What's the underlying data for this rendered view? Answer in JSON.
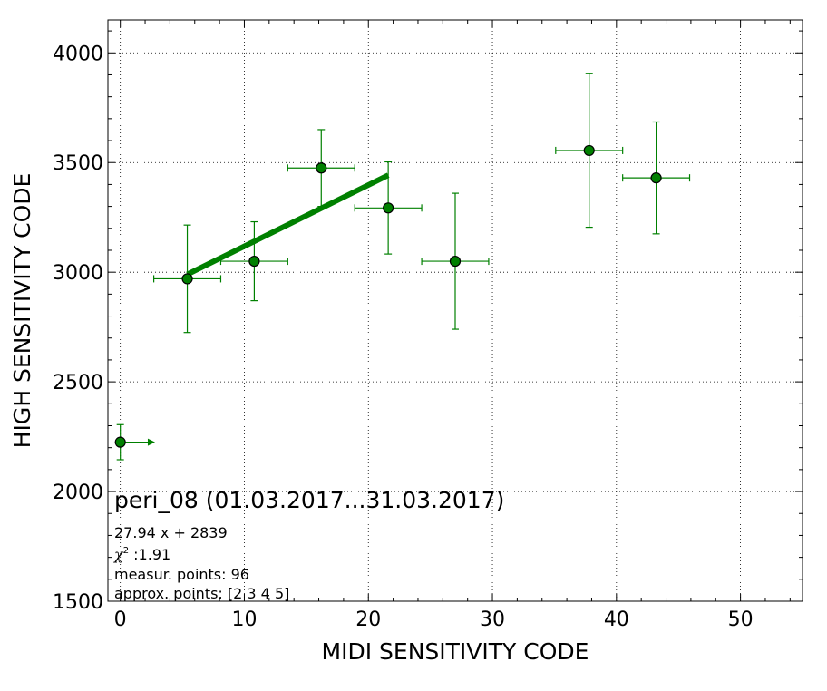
{
  "chart_data": {
    "type": "scatter",
    "title": "",
    "xlabel": "MIDI SENSITIVITY CODE",
    "ylabel": "HIGH SENSITIVITY CODE",
    "xlim": [
      -1,
      55
    ],
    "ylim": [
      1500,
      4150
    ],
    "x_ticks": [
      0,
      10,
      20,
      30,
      40,
      50
    ],
    "y_ticks": [
      1500,
      2000,
      2500,
      3000,
      3500,
      4000
    ],
    "x_tick_labels": [
      "0",
      "10",
      "20",
      "30",
      "40",
      "50"
    ],
    "y_tick_labels": [
      "1500",
      "2000",
      "2500",
      "3000",
      "3500",
      "4000"
    ],
    "grid": true,
    "colors": {
      "series": "#008000",
      "marker_edge": "#000000",
      "grid": "#000000"
    },
    "points": [
      {
        "x": 0,
        "y": 2225,
        "xerr": 0,
        "yerr_low": 80,
        "yerr_high": 80,
        "lower_limit_arrow": true
      },
      {
        "x": 5.4,
        "y": 2970,
        "xerr": 2.7,
        "yerr_low": 245,
        "yerr_high": 245
      },
      {
        "x": 10.8,
        "y": 3050,
        "xerr": 2.7,
        "yerr_low": 180,
        "yerr_high": 180
      },
      {
        "x": 16.2,
        "y": 3475,
        "xerr": 2.7,
        "yerr_low": 175,
        "yerr_high": 175
      },
      {
        "x": 21.6,
        "y": 3293,
        "xerr": 2.7,
        "yerr_low": 210,
        "yerr_high": 210
      },
      {
        "x": 27.0,
        "y": 3050,
        "xerr": 2.7,
        "yerr_low": 310,
        "yerr_high": 310
      },
      {
        "x": 37.8,
        "y": 3555,
        "xerr": 2.7,
        "yerr_low": 350,
        "yerr_high": 350
      },
      {
        "x": 43.2,
        "y": 3430,
        "xerr": 2.7,
        "yerr_low": 255,
        "yerr_high": 255
      }
    ],
    "fit_line": {
      "slope": 27.94,
      "intercept": 2839,
      "x_range": [
        5.4,
        21.6
      ]
    },
    "annotations": {
      "station": "peri_08 (01.03.2017...31.03.2017)",
      "equation": "27.94 x + 2839",
      "chi2_symbol": "χ",
      "chi2_sup": "2",
      "chi2_value": " :1.91",
      "measur_points": "measur. points: 96",
      "approx_points": "approx. points: [2 3 4 5]"
    }
  }
}
